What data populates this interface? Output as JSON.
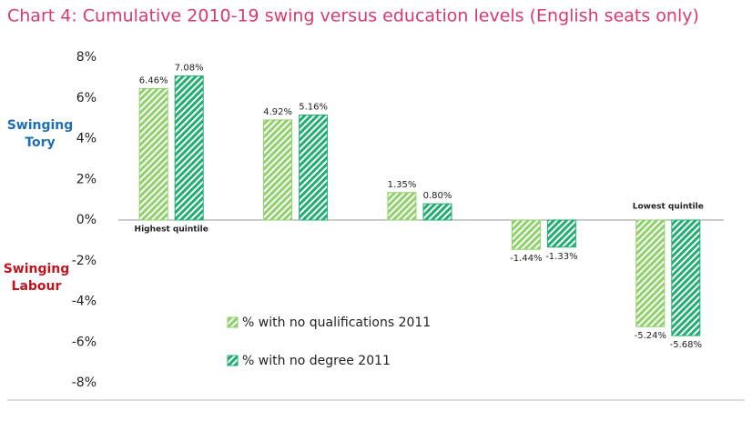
{
  "chart_data": {
    "type": "bar",
    "title": "Chart 4: Cumulative 2010-19 swing versus education levels (English seats only)",
    "title_color": "#d93a6c",
    "categories": [
      "Highest quintile",
      null,
      null,
      null,
      "Lowest quintile"
    ],
    "series": [
      {
        "name": "% with no qualifications 2011",
        "color": "#8fd16a",
        "values": [
          6.46,
          4.92,
          1.35,
          -1.44,
          -5.24
        ],
        "value_labels": [
          "6.46%",
          "4.92%",
          "1.35%",
          "-1.44%",
          "-5.24%"
        ]
      },
      {
        "name": "% with no degree 2011",
        "color": "#22ad73",
        "values": [
          7.08,
          5.16,
          0.8,
          -1.33,
          -5.68
        ],
        "value_labels": [
          "7.08%",
          "5.16%",
          "0.80%",
          "-1.33%",
          "-5.68%"
        ]
      }
    ],
    "ylim": [
      -8,
      8
    ],
    "yticks": [
      {
        "value": -8,
        "label": "-8%"
      },
      {
        "value": -6,
        "label": "-6%"
      },
      {
        "value": -4,
        "label": "-4%"
      },
      {
        "value": -2,
        "label": "-2%"
      },
      {
        "value": 0,
        "label": "0%"
      },
      {
        "value": 2,
        "label": "2%"
      },
      {
        "value": 4,
        "label": "4%"
      },
      {
        "value": 6,
        "label": "6%"
      },
      {
        "value": 8,
        "label": "8%"
      }
    ],
    "annotations": [
      {
        "text": "Swinging Tory",
        "color": "#1f6fb5"
      },
      {
        "text": "Swinging Labour",
        "color": "#c0151d"
      }
    ]
  }
}
